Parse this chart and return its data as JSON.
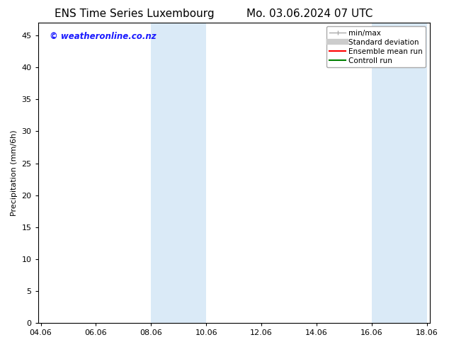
{
  "title_left": "ENS Time Series Luxembourg",
  "title_right": "Mo. 03.06.2024 07 UTC",
  "ylabel": "Precipitation (mm/6h)",
  "ylim": [
    0,
    47
  ],
  "yticks": [
    0,
    5,
    10,
    15,
    20,
    25,
    30,
    35,
    40,
    45
  ],
  "xtick_labels": [
    "04.06",
    "06.06",
    "08.06",
    "10.06",
    "12.06",
    "14.06",
    "16.06",
    "18.06"
  ],
  "xtick_positions": [
    0,
    2,
    4,
    6,
    8,
    10,
    12,
    14
  ],
  "xlim": [
    -0.1,
    14.1
  ],
  "shaded_bands": [
    {
      "x_start": 4,
      "x_end": 6
    },
    {
      "x_start": 12,
      "x_end": 14
    }
  ],
  "shaded_color": "#daeaf7",
  "background_color": "#ffffff",
  "watermark_text": "© weatheronline.co.nz",
  "watermark_color": "#1a1aff",
  "watermark_fontsize": 8.5,
  "legend_entries": [
    {
      "label": "min/max",
      "color": "#aaaaaa",
      "lw": 1.0,
      "style": "minmax"
    },
    {
      "label": "Standard deviation",
      "color": "#cccccc",
      "lw": 6,
      "style": "fill"
    },
    {
      "label": "Ensemble mean run",
      "color": "#ff0000",
      "lw": 1.5,
      "style": "line"
    },
    {
      "label": "Controll run",
      "color": "#008000",
      "lw": 1.5,
      "style": "line"
    }
  ],
  "title_fontsize": 11,
  "axis_label_fontsize": 8,
  "tick_fontsize": 8,
  "legend_fontsize": 7.5
}
